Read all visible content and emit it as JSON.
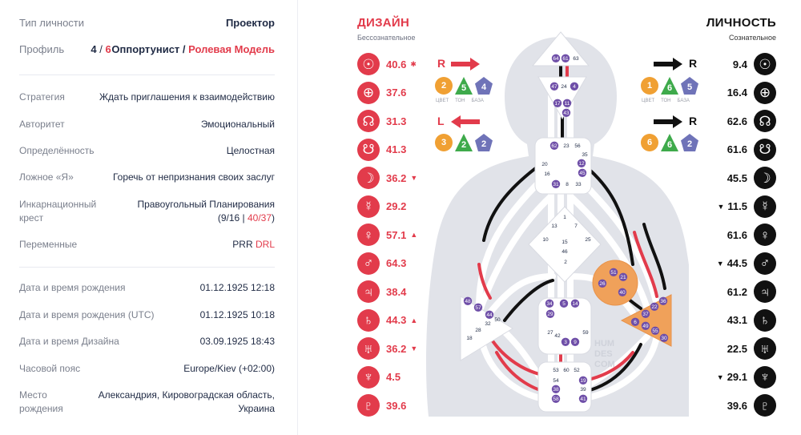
{
  "info": {
    "type": {
      "label": "Тип личности",
      "value": "Проектор"
    },
    "profile": {
      "label": "Профиль",
      "num_a": "4",
      "num_sep": " / ",
      "num_b": "6",
      "name_a": "Оппортунист",
      "name_sep": " / ",
      "name_b": "Ролевая Модель"
    },
    "strategy": {
      "label": "Стратегия",
      "value": "Ждать приглашения к взаимодействию"
    },
    "authority": {
      "label": "Авторитет",
      "value": "Эмоциональный"
    },
    "definition": {
      "label": "Определённость",
      "value": "Целостная"
    },
    "not_self": {
      "label": "Ложное «Я»",
      "value": "Горечь от непризнания своих заслуг"
    },
    "cross": {
      "label_1": "Инкарнационный",
      "label_2": "крест",
      "value": "Правоугольный Планирования",
      "open": "(",
      "gates_a": "9/16",
      "sep": " | ",
      "gates_b": "40/37",
      "close": ")"
    },
    "variables": {
      "label": "Переменные",
      "value_a": "PRR",
      "value_b": "DRL"
    },
    "birth": {
      "label": "Дата и время рождения",
      "value": "01.12.1925 12:18"
    },
    "birth_utc": {
      "label": "Дата и время рождения (UTC)",
      "value": "01.12.1925 10:18"
    },
    "design_date": {
      "label": "Дата и время Дизайна",
      "value": "03.09.1925 18:43"
    },
    "timezone": {
      "label": "Часовой пояс",
      "value": "Europe/Kiev (+02:00)"
    },
    "place": {
      "label_1": "Место",
      "label_2": "рождения",
      "value_1": "Александрия, Кировоградская область,",
      "value_2": "Украина"
    }
  },
  "design": {
    "title": "ДИЗАЙН",
    "subtitle": "Бессознательное",
    "arrow_top": "R",
    "arrow_bottom": "L",
    "badges_top": [
      "2",
      "5",
      "4"
    ],
    "badges_bottom": [
      "3",
      "2",
      "2"
    ],
    "badge_captions": [
      "ЦВЕТ",
      "ТОН",
      "БАЗА"
    ],
    "planets": [
      {
        "icon": "sun-icon",
        "glyph": "☉",
        "value": "40.6",
        "mark": "✱"
      },
      {
        "icon": "earth-icon",
        "glyph": "⊕",
        "value": "37.6",
        "mark": ""
      },
      {
        "icon": "north-node-icon",
        "glyph": "☊",
        "value": "31.3",
        "mark": ""
      },
      {
        "icon": "south-node-icon",
        "glyph": "☋",
        "value": "41.3",
        "mark": ""
      },
      {
        "icon": "moon-icon",
        "glyph": "☽",
        "value": "36.2",
        "mark": "▼"
      },
      {
        "icon": "mercury-icon",
        "glyph": "☿",
        "value": "29.2",
        "mark": ""
      },
      {
        "icon": "venus-icon",
        "glyph": "♀",
        "value": "57.1",
        "mark": "▲"
      },
      {
        "icon": "mars-icon",
        "glyph": "♂",
        "value": "64.3",
        "mark": ""
      },
      {
        "icon": "jupiter-icon",
        "glyph": "♃",
        "value": "38.4",
        "mark": ""
      },
      {
        "icon": "saturn-icon",
        "glyph": "♄",
        "value": "44.3",
        "mark": "▲"
      },
      {
        "icon": "uranus-icon",
        "glyph": "♅",
        "value": "36.2",
        "mark": "▼"
      },
      {
        "icon": "neptune-icon",
        "glyph": "♆",
        "value": "4.5",
        "mark": ""
      },
      {
        "icon": "pluto-icon",
        "glyph": "♇",
        "value": "39.6",
        "mark": ""
      }
    ]
  },
  "personality": {
    "title": "ЛИЧНОСТЬ",
    "subtitle": "Сознательное",
    "arrow_top": "R",
    "arrow_bottom": "R",
    "badges_top": [
      "1",
      "6",
      "5"
    ],
    "badges_bottom": [
      "6",
      "6",
      "2"
    ],
    "badge_captions": [
      "ЦВЕТ",
      "ТОН",
      "БАЗА"
    ],
    "planets": [
      {
        "icon": "sun-icon",
        "glyph": "☉",
        "value": "9.4",
        "mark": ""
      },
      {
        "icon": "earth-icon",
        "glyph": "⊕",
        "value": "16.4",
        "mark": ""
      },
      {
        "icon": "north-node-icon",
        "glyph": "☊",
        "value": "62.6",
        "mark": ""
      },
      {
        "icon": "south-node-icon",
        "glyph": "☋",
        "value": "61.6",
        "mark": ""
      },
      {
        "icon": "moon-icon",
        "glyph": "☽",
        "value": "45.5",
        "mark": ""
      },
      {
        "icon": "mercury-icon",
        "glyph": "☿",
        "value": "11.5",
        "mark": "▼"
      },
      {
        "icon": "venus-icon",
        "glyph": "♀",
        "value": "61.6",
        "mark": ""
      },
      {
        "icon": "mars-icon",
        "glyph": "♂",
        "value": "44.5",
        "mark": "▼"
      },
      {
        "icon": "jupiter-icon",
        "glyph": "♃",
        "value": "61.2",
        "mark": ""
      },
      {
        "icon": "saturn-icon",
        "glyph": "♄",
        "value": "43.1",
        "mark": ""
      },
      {
        "icon": "uranus-icon",
        "glyph": "♅",
        "value": "22.5",
        "mark": ""
      },
      {
        "icon": "neptune-icon",
        "glyph": "♆",
        "value": "29.1",
        "mark": "▼"
      },
      {
        "icon": "pluto-icon",
        "glyph": "♇",
        "value": "39.6",
        "mark": ""
      }
    ]
  },
  "bodygraph": {
    "watermark": [
      "HUM",
      "DES",
      "COM"
    ],
    "colors": {
      "design": "#e23b4b",
      "personality": "#111111",
      "defined_center": "#f0a15a",
      "open_center": "#ffffff",
      "activated_gate": "#6f4fa8",
      "silhouette": "#dfe1e7"
    },
    "gates": {
      "head": [
        "64",
        "61",
        "63"
      ],
      "ajna": [
        "47",
        "24",
        "4",
        "17",
        "11",
        "43"
      ],
      "throat": [
        "62",
        "23",
        "56",
        "35",
        "12",
        "45",
        "20",
        "16",
        "31",
        "8",
        "33"
      ],
      "g": [
        "1",
        "13",
        "7",
        "10",
        "25",
        "15",
        "46",
        "2"
      ],
      "ego": [
        "51",
        "21",
        "26",
        "40"
      ],
      "spleen": [
        "48",
        "57",
        "44",
        "50",
        "32",
        "28",
        "18"
      ],
      "solar": [
        "36",
        "22",
        "37",
        "6",
        "49",
        "55",
        "30"
      ],
      "sacral": [
        "34",
        "5",
        "14",
        "29",
        "27",
        "42",
        "3",
        "9",
        "59"
      ],
      "root": [
        "53",
        "60",
        "52",
        "54",
        "19",
        "38",
        "39",
        "58",
        "41"
      ]
    }
  }
}
